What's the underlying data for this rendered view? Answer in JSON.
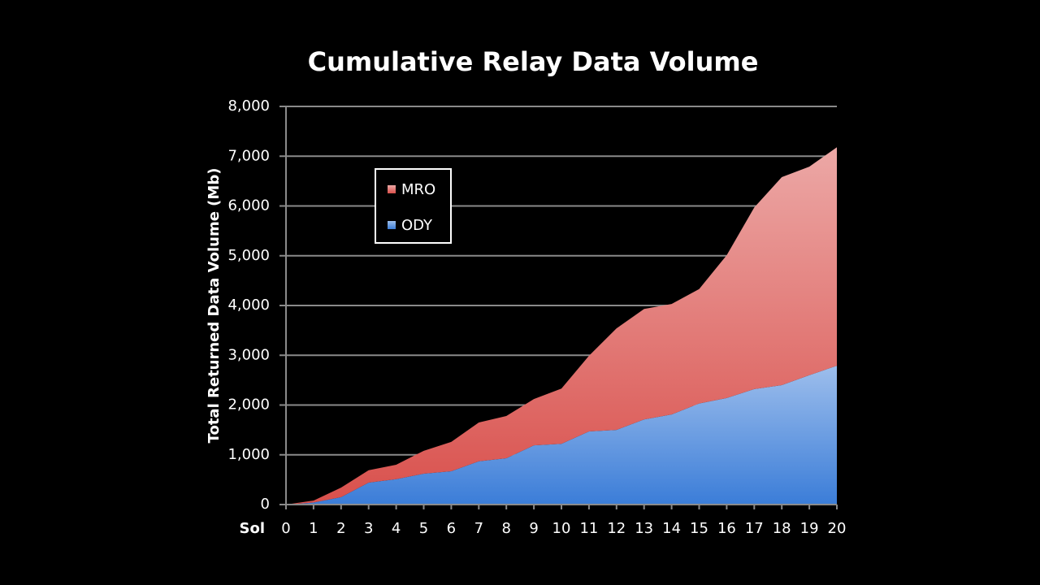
{
  "chart_data": {
    "type": "stacked_area",
    "title": "Cumulative Relay Data Volume",
    "y_label": "Total Returned Data Volume (Mb)",
    "x_label": "Sol",
    "x": [
      0,
      1,
      2,
      3,
      4,
      5,
      6,
      7,
      8,
      9,
      10,
      11,
      12,
      13,
      14,
      15,
      16,
      17,
      18,
      19,
      20
    ],
    "series": [
      {
        "name": "ODY",
        "color": "#3b7dd8",
        "values": [
          0,
          40,
          150,
          440,
          510,
          620,
          670,
          870,
          930,
          1190,
          1220,
          1470,
          1500,
          1710,
          1810,
          2030,
          2140,
          2320,
          2400,
          2600,
          2790
        ]
      },
      {
        "name": "MRO",
        "color": "#d9504c",
        "values": [
          0,
          40,
          190,
          250,
          290,
          460,
          590,
          780,
          850,
          930,
          1110,
          1520,
          2040,
          2220,
          2220,
          2300,
          2870,
          3650,
          4180,
          4190,
          4390
        ]
      }
    ],
    "xlim": [
      0,
      20
    ],
    "xticks": [
      0,
      1,
      2,
      3,
      4,
      5,
      6,
      7,
      8,
      9,
      10,
      11,
      12,
      13,
      14,
      15,
      16,
      17,
      18,
      19,
      20
    ],
    "ylim": [
      0,
      8000
    ],
    "yticks": [
      0,
      {
        "value": 1000,
        "label": "1,000"
      },
      {
        "value": 2000,
        "label": "2,000"
      },
      {
        "value": 3000,
        "label": "3,000"
      },
      {
        "value": 4000,
        "label": "4,000"
      },
      {
        "value": 5000,
        "label": "5,000"
      },
      {
        "value": 6000,
        "label": "6,000"
      },
      {
        "value": 7000,
        "label": "7,000"
      },
      {
        "value": 8000,
        "label": "8,000"
      }
    ],
    "grid": true,
    "legend": "upper-left"
  }
}
